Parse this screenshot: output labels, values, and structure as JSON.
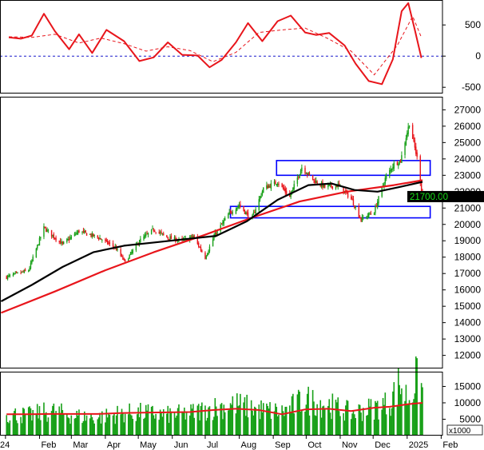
{
  "chart_data": [
    {
      "panel": "oscillator",
      "type": "line",
      "ylim": [
        -600,
        900
      ],
      "yticks": [
        "500",
        "0",
        "-500"
      ],
      "zero_line": 0,
      "series": [
        {
          "role": "main",
          "color": "#e8151b",
          "x": [
            "2024-01-04",
            "2024-01-15",
            "2024-01-25",
            "2024-02-05",
            "2024-02-15",
            "2024-02-28",
            "2024-03-08",
            "2024-03-20",
            "2024-04-02",
            "2024-04-18",
            "2024-05-02",
            "2024-05-15",
            "2024-05-28",
            "2024-06-10",
            "2024-06-24",
            "2024-07-05",
            "2024-07-16",
            "2024-07-29",
            "2024-08-09",
            "2024-08-22",
            "2024-09-05",
            "2024-09-17",
            "2024-09-30",
            "2024-10-10",
            "2024-10-22",
            "2024-11-05",
            "2024-11-15",
            "2024-11-27",
            "2024-12-09",
            "2024-12-19",
            "2024-12-27",
            "2025-01-02",
            "2025-01-08",
            "2025-01-14"
          ],
          "values": [
            300,
            280,
            330,
            680,
            400,
            110,
            350,
            50,
            420,
            240,
            -80,
            -20,
            220,
            20,
            10,
            -180,
            -60,
            220,
            530,
            240,
            560,
            650,
            380,
            340,
            370,
            170,
            -120,
            -400,
            -450,
            -50,
            720,
            850,
            420,
            -30
          ]
        },
        {
          "role": "signal",
          "color": "#e8151b",
          "dashed": true,
          "x": [
            "2024-01-04",
            "2024-01-25",
            "2024-02-15",
            "2024-03-08",
            "2024-03-28",
            "2024-04-18",
            "2024-05-08",
            "2024-05-28",
            "2024-06-17",
            "2024-07-08",
            "2024-07-29",
            "2024-08-19",
            "2024-09-09",
            "2024-09-30",
            "2024-10-21",
            "2024-11-11",
            "2024-12-02",
            "2024-12-23",
            "2025-01-06",
            "2025-01-14"
          ],
          "values": [
            310,
            300,
            350,
            210,
            290,
            200,
            80,
            150,
            90,
            -90,
            60,
            380,
            420,
            450,
            280,
            80,
            -300,
            170,
            640,
            300
          ]
        }
      ]
    },
    {
      "panel": "price",
      "type": "candlestick",
      "ylim": [
        11200,
        27800
      ],
      "yticks": [
        "27000",
        "26000",
        "25000",
        "24000",
        "23000",
        "22000",
        "21000",
        "20000",
        "19000",
        "18000",
        "17000",
        "16000",
        "15000",
        "14000",
        "13000",
        "12000"
      ],
      "last_price_label": "21700.00",
      "last_price": 21700,
      "close_series": {
        "x": [
          "2024-01-02",
          "2024-01-22",
          "2024-02-05",
          "2024-02-22",
          "2024-03-08",
          "2024-03-26",
          "2024-04-10",
          "2024-04-19",
          "2024-05-02",
          "2024-05-15",
          "2024-05-28",
          "2024-06-10",
          "2024-06-20",
          "2024-07-01",
          "2024-07-10",
          "2024-07-22",
          "2024-08-01",
          "2024-08-12",
          "2024-08-23",
          "2024-09-05",
          "2024-09-16",
          "2024-09-27",
          "2024-10-08",
          "2024-10-18",
          "2024-10-30",
          "2024-11-11",
          "2024-11-20",
          "2024-12-02",
          "2024-12-12",
          "2024-12-20",
          "2024-12-26",
          "2025-01-03",
          "2025-01-10",
          "2025-01-15"
        ],
        "values": [
          16800,
          17200,
          19800,
          18800,
          19600,
          19200,
          18600,
          17700,
          19000,
          19700,
          19200,
          19000,
          19300,
          18000,
          19400,
          20600,
          21200,
          20300,
          22200,
          22600,
          21700,
          23500,
          22700,
          22300,
          22400,
          21600,
          20300,
          20800,
          22800,
          23700,
          23900,
          26200,
          24100,
          21700
        ]
      },
      "series": [
        {
          "name": "",
          "role": "long-ma",
          "color": "#e8151b",
          "x": [
            "2023-12-28",
            "2024-02-15",
            "2024-04-01",
            "2024-05-15",
            "2024-06-28",
            "2024-08-12",
            "2024-09-25",
            "2024-11-07",
            "2024-12-20",
            "2025-01-15"
          ],
          "values": [
            14600,
            15900,
            17200,
            18300,
            19300,
            20400,
            21400,
            22000,
            22400,
            22700
          ]
        },
        {
          "name": "",
          "role": "medium-ma",
          "color": "#000000",
          "x": [
            "2023-12-28",
            "2024-01-25",
            "2024-02-22",
            "2024-03-21",
            "2024-04-18",
            "2024-05-16",
            "2024-06-13",
            "2024-07-11",
            "2024-08-08",
            "2024-09-05",
            "2024-10-03",
            "2024-10-24",
            "2024-11-14",
            "2024-12-05",
            "2024-12-26",
            "2025-01-15"
          ],
          "values": [
            15300,
            16300,
            17400,
            18300,
            18700,
            18900,
            19100,
            19300,
            20200,
            21500,
            22400,
            22500,
            22100,
            22000,
            22300,
            22600
          ]
        }
      ],
      "rectangles": [
        {
          "x0": "2024-09-04",
          "x1": "2025-01-22",
          "y0": 23000,
          "y1": 23900,
          "color": "#0000ff"
        },
        {
          "x0": "2024-07-24",
          "x1": "2025-01-22",
          "y0": 20400,
          "y1": 21100,
          "color": "#0000ff"
        }
      ]
    },
    {
      "panel": "volume",
      "type": "bar",
      "unit_label": "x1000",
      "ylim": [
        0,
        19500
      ],
      "yticks": [
        "15000",
        "10000",
        "5000"
      ],
      "bar_color": "#18a018",
      "ma_color": "#e8151b",
      "x": [
        "2024-01-02",
        "2024-01-22",
        "2024-02-12",
        "2024-03-04",
        "2024-03-25",
        "2024-04-15",
        "2024-05-06",
        "2024-05-27",
        "2024-06-17",
        "2024-07-08",
        "2024-07-29",
        "2024-08-19",
        "2024-09-09",
        "2024-09-30",
        "2024-10-21",
        "2024-11-11",
        "2024-12-02",
        "2024-12-16",
        "2024-12-25",
        "2025-01-02",
        "2025-01-09",
        "2025-01-15"
      ],
      "values": [
        6500,
        6200,
        7500,
        6000,
        5500,
        6800,
        7000,
        6300,
        6900,
        8500,
        9500,
        8000,
        7200,
        11000,
        9500,
        7000,
        8500,
        10000,
        16000,
        11000,
        17000,
        14000
      ],
      "ma_values": [
        6500,
        6500,
        6600,
        6600,
        6600,
        6900,
        7000,
        7100,
        7200,
        7800,
        8200,
        7800,
        6500,
        8000,
        8200,
        7500,
        8500,
        8800,
        9200,
        9600,
        9800,
        10000
      ]
    }
  ],
  "x_axis": {
    "labels": [
      "24",
      "Feb",
      "Mar",
      "Apr",
      "May",
      "Jun",
      "Jul",
      "Aug",
      "Sep",
      "Oct",
      "Nov",
      "Dec",
      "2025",
      "Feb"
    ],
    "dates": [
      "2024-01-01",
      "2024-02-01",
      "2024-03-01",
      "2024-04-01",
      "2024-05-01",
      "2024-06-01",
      "2024-07-01",
      "2024-08-01",
      "2024-09-01",
      "2024-10-01",
      "2024-11-01",
      "2024-12-01",
      "2025-01-01",
      "2025-02-01"
    ]
  }
}
